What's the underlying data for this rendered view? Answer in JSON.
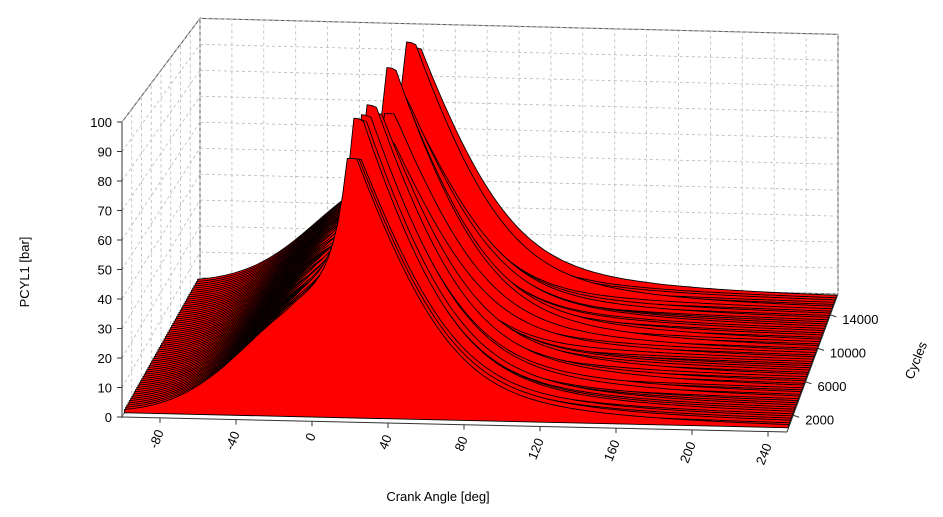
{
  "chart_data": {
    "type": "surface-3d-waterfall",
    "title": "",
    "xlabel": "Crank Angle [deg]",
    "ylabel": "PCYL1 [bar]",
    "zlabel": "Cycles",
    "x_ticks": [
      "-80",
      "-40",
      "0",
      "40",
      "80",
      "120",
      "160",
      "200",
      "240"
    ],
    "y_ticks": [
      "0",
      "10",
      "20",
      "30",
      "40",
      "50",
      "60",
      "70",
      "80",
      "90",
      "100"
    ],
    "z_ticks": [
      "2000",
      "6000",
      "10000",
      "14000"
    ],
    "xlim": [
      -100,
      250
    ],
    "ylim": [
      0,
      100
    ],
    "zlim": [
      0,
      16500
    ],
    "grid": true,
    "surface_color": "#ff0000",
    "edge_color": "#000000",
    "curve_model": {
      "base_pressure_bar": 0,
      "compression_peak_bar": 40,
      "peak_crank_angle_deg": 18,
      "max_peak_pressure_bar": 100,
      "tail_pressure_bar": 4,
      "cycle_sample_count": 60,
      "cycles_range": [
        500,
        16000
      ]
    }
  }
}
